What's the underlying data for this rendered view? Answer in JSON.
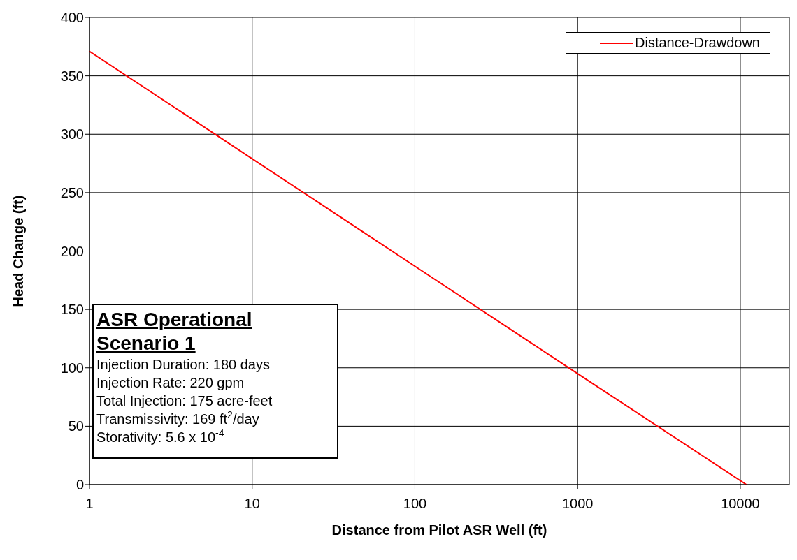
{
  "chart_data": {
    "type": "line",
    "xlabel": "Distance from Pilot ASR Well (ft)",
    "ylabel": "Head Change (ft)",
    "x": [
      1,
      10,
      100,
      1000,
      10900
    ],
    "series": [
      {
        "name": "Distance-Drawdown",
        "color": "#ff0000",
        "values": [
          371,
          279,
          187,
          95,
          0
        ]
      }
    ],
    "log": "x",
    "xlim": [
      1,
      20000
    ],
    "xticks": [
      1,
      10,
      100,
      1000,
      10000
    ],
    "ylim": [
      0,
      400
    ],
    "yticks": [
      0,
      50,
      100,
      150,
      200,
      250,
      300,
      350,
      400
    ],
    "grid": true,
    "legend": "top right",
    "line_style": "solid",
    "annotations": [
      "ASR Operational Scenario 1",
      "Injection Duration: 180 days",
      "Injection Rate: 220 gpm",
      "Total Injection: 175 acre-feet",
      "Transmissivity: 169 ft$^{2}$/day",
      "Storativity: 5.6 x 10$^{-4}$"
    ]
  }
}
